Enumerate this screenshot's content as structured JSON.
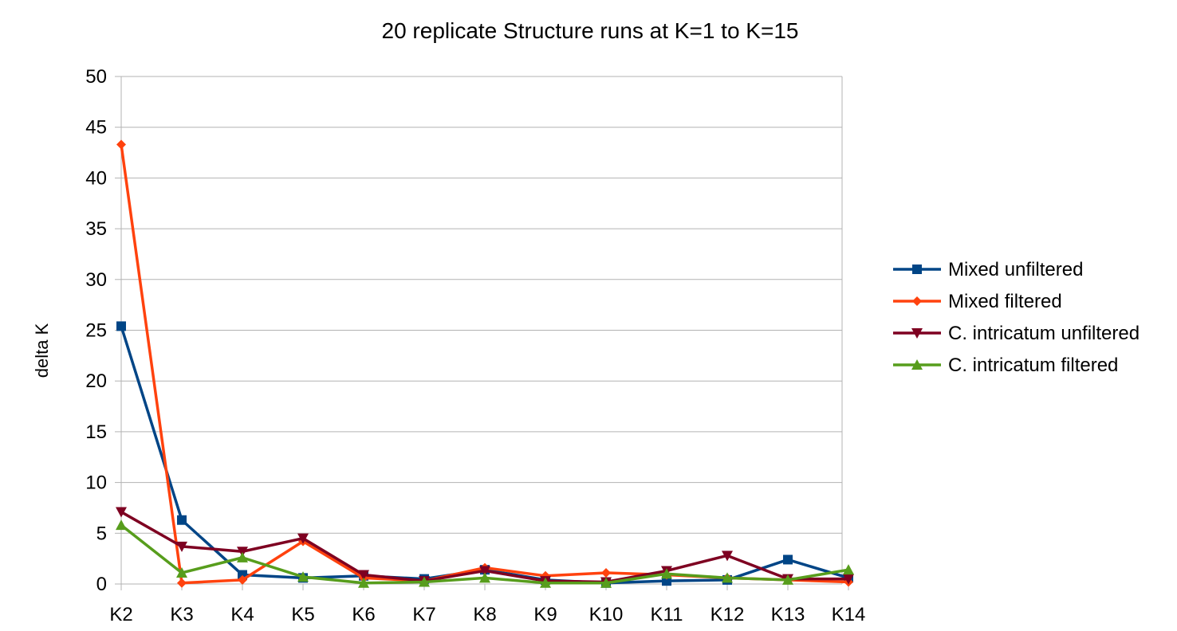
{
  "chart_data": {
    "type": "line",
    "title": "20 replicate Structure runs at K=1 to K=15",
    "xlabel": "",
    "ylabel": "delta K",
    "categories": [
      "K2",
      "K3",
      "K4",
      "K5",
      "K6",
      "K7",
      "K8",
      "K9",
      "K10",
      "K11",
      "K12",
      "K13",
      "K14"
    ],
    "ylim": [
      0,
      50
    ],
    "yticks": [
      0,
      5,
      10,
      15,
      20,
      25,
      30,
      35,
      40,
      45,
      50
    ],
    "grid": true,
    "legend_position": "right",
    "series": [
      {
        "name": "Mixed unfiltered",
        "color": "#004586",
        "marker": "square",
        "values": [
          25.4,
          6.3,
          0.9,
          0.6,
          0.8,
          0.5,
          1.4,
          0.4,
          0.1,
          0.3,
          0.4,
          2.4,
          0.6
        ]
      },
      {
        "name": "Mixed filtered",
        "color": "#ff420e",
        "marker": "diamond",
        "values": [
          43.3,
          0.1,
          0.4,
          4.2,
          0.6,
          0.3,
          1.6,
          0.8,
          1.1,
          0.9,
          0.6,
          0.4,
          0.2
        ]
      },
      {
        "name": "C. intricatum unfiltered",
        "color": "#7e0021",
        "marker": "triangle-down",
        "values": [
          7.1,
          3.7,
          3.2,
          4.5,
          0.9,
          0.3,
          1.3,
          0.3,
          0.2,
          1.3,
          2.8,
          0.5,
          0.5
        ]
      },
      {
        "name": "C. intricatum filtered",
        "color": "#579d1c",
        "marker": "triangle-up",
        "values": [
          5.8,
          1.1,
          2.6,
          0.7,
          0.1,
          0.2,
          0.6,
          0.1,
          0.1,
          1.0,
          0.6,
          0.4,
          1.4
        ]
      }
    ]
  }
}
